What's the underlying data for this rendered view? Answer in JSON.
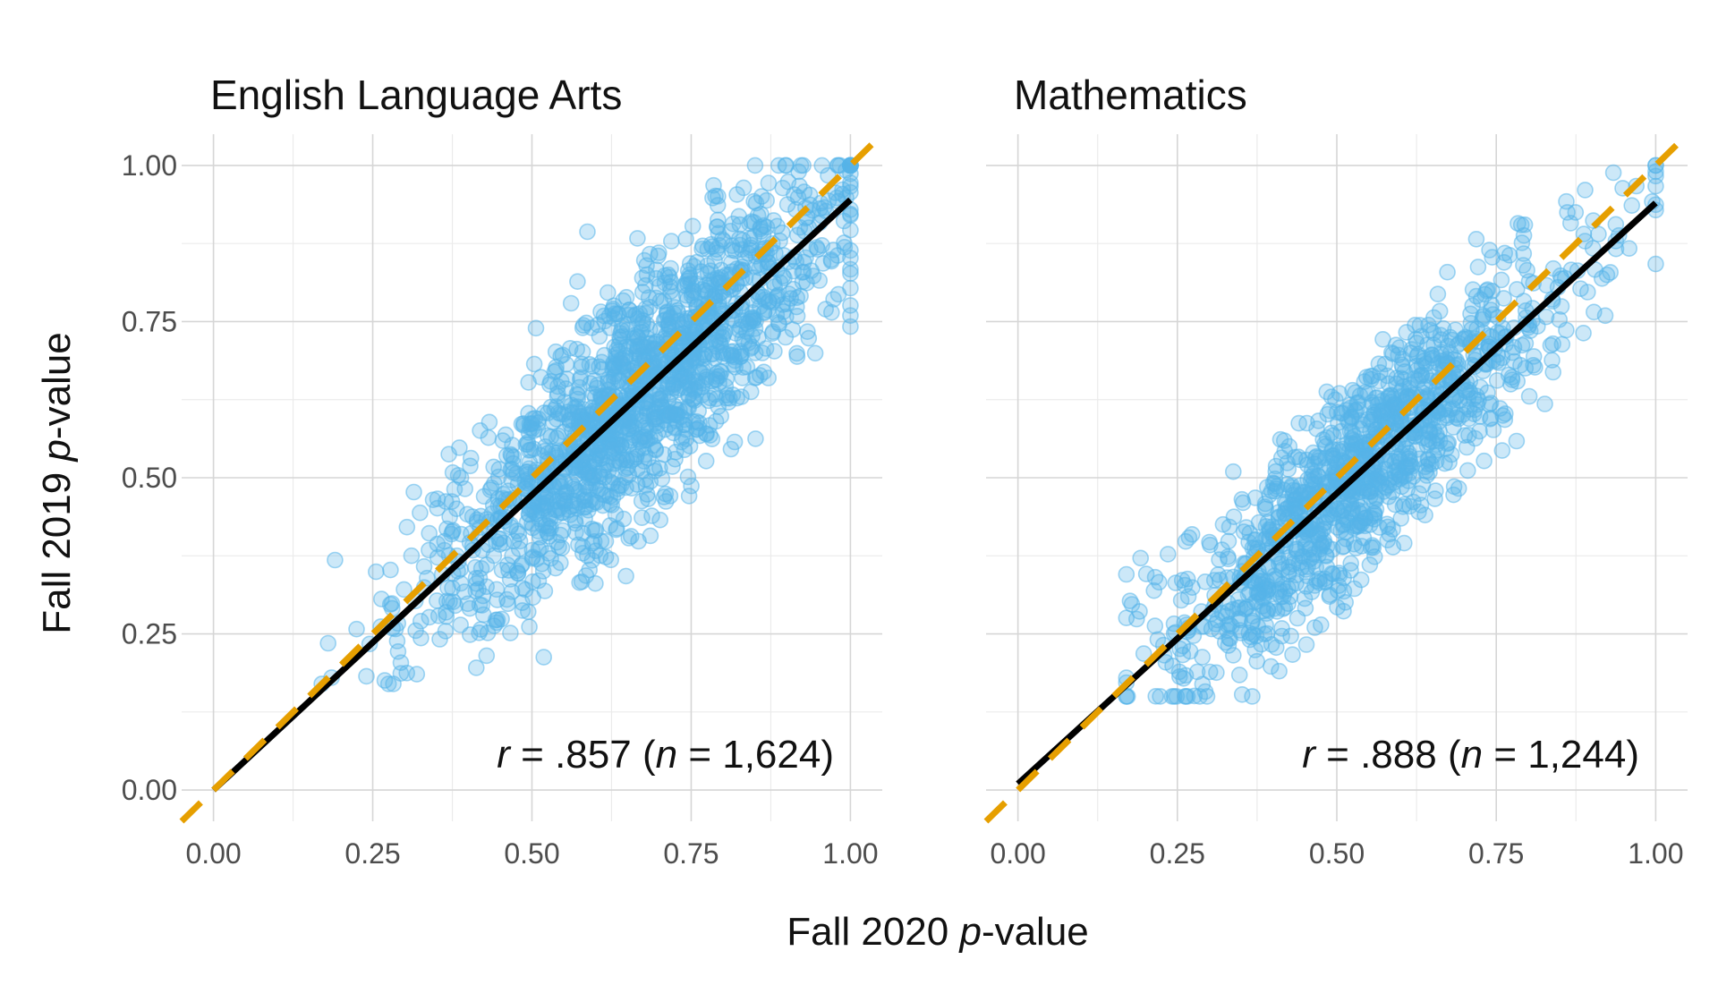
{
  "figure": {
    "xlabel_prefix": "Fall 2020 ",
    "xlabel_italic": "p",
    "xlabel_suffix": "-value",
    "ylabel_prefix": "Fall 2019 ",
    "ylabel_italic": "p",
    "ylabel_suffix": "-value",
    "point_color": "#56B4E9",
    "fit_line_color": "#000000",
    "identity_line_color": "#E69F00"
  },
  "chart_data": [
    {
      "type": "scatter",
      "title": "English Language Arts",
      "xlim": [
        -0.05,
        1.05
      ],
      "ylim": [
        -0.05,
        1.05
      ],
      "x_ticks": [
        "0.00",
        "0.25",
        "0.50",
        "0.75",
        "1.00"
      ],
      "y_ticks": [
        "0.00",
        "0.25",
        "0.50",
        "0.75",
        "1.00"
      ],
      "annotation": {
        "r_label": "r",
        "r_value": " = .857 (",
        "n_label": "n",
        "n_value": " = 1,624)"
      },
      "n_points": 1624,
      "correlation": 0.857,
      "fit_line": {
        "x": [
          0.0,
          1.0
        ],
        "y": [
          0.0,
          0.945
        ]
      },
      "identity_line": {
        "x": [
          -0.05,
          1.05
        ],
        "y": [
          -0.05,
          1.05
        ]
      },
      "point_cloud": {
        "x_mean": 0.66,
        "x_sd": 0.16,
        "x_range": [
          0.17,
          1.0
        ],
        "y_range": [
          0.17,
          1.0
        ]
      }
    },
    {
      "type": "scatter",
      "title": "Mathematics",
      "xlim": [
        -0.05,
        1.05
      ],
      "ylim": [
        -0.05,
        1.05
      ],
      "x_ticks": [
        "0.00",
        "0.25",
        "0.50",
        "0.75",
        "1.00"
      ],
      "y_ticks": [
        "0.00",
        "0.25",
        "0.50",
        "0.75",
        "1.00"
      ],
      "annotation": {
        "r_label": "r",
        "r_value": " = .888 (",
        "n_label": "n",
        "n_value": " = 1,244)"
      },
      "n_points": 1244,
      "correlation": 0.888,
      "fit_line": {
        "x": [
          0.0,
          1.0
        ],
        "y": [
          0.01,
          0.94
        ]
      },
      "identity_line": {
        "x": [
          -0.05,
          1.05
        ],
        "y": [
          -0.05,
          1.05
        ]
      },
      "point_cloud": {
        "x_mean": 0.55,
        "x_sd": 0.16,
        "x_range": [
          0.17,
          1.0
        ],
        "y_range": [
          0.15,
          1.0
        ]
      }
    }
  ]
}
